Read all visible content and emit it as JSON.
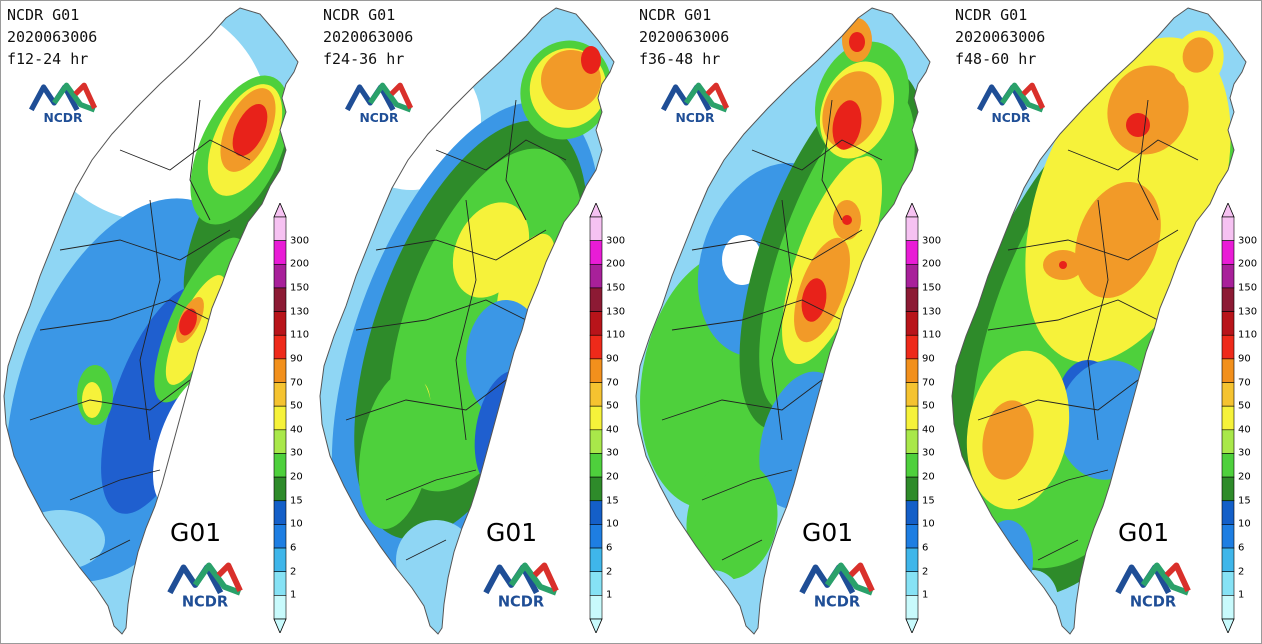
{
  "panels": [
    {
      "model": "NCDR G01",
      "init": "2020063006",
      "range": "f12-24 hr",
      "big_label": "G01"
    },
    {
      "model": "NCDR G01",
      "init": "2020063006",
      "range": "f24-36 hr",
      "big_label": "G01"
    },
    {
      "model": "NCDR G01",
      "init": "2020063006",
      "range": "f36-48 hr",
      "big_label": "G01"
    },
    {
      "model": "NCDR G01",
      "init": "2020063006",
      "range": "f48-60 hr",
      "big_label": "G01"
    }
  ],
  "logo_text": "NCDR",
  "colorbar": {
    "levels": [
      "1",
      "2",
      "6",
      "10",
      "15",
      "20",
      "30",
      "40",
      "50",
      "70",
      "90",
      "110",
      "130",
      "150",
      "200",
      "300"
    ],
    "colors": [
      "#c8fafc",
      "#86e2f5",
      "#3fb6ea",
      "#1e7ee2",
      "#145fc8",
      "#2e8b2a",
      "#4ed03c",
      "#a9e84a",
      "#f6f23a",
      "#f5c330",
      "#f2901c",
      "#ee2a1a",
      "#b8141a",
      "#8c1a34",
      "#a8209a",
      "#e91cd6",
      "#f6c2f2"
    ],
    "colors_note": ""
  },
  "palette": {
    "white": "#ffffff",
    "lightblue": "#8fd6f4",
    "blue": "#3b97e6",
    "darkblue": "#1f5fcf",
    "dkgreen": "#2e8b2a",
    "green": "#4ed03c",
    "yellow": "#f6f23a",
    "orange": "#f29a28",
    "red": "#e8221a"
  }
}
